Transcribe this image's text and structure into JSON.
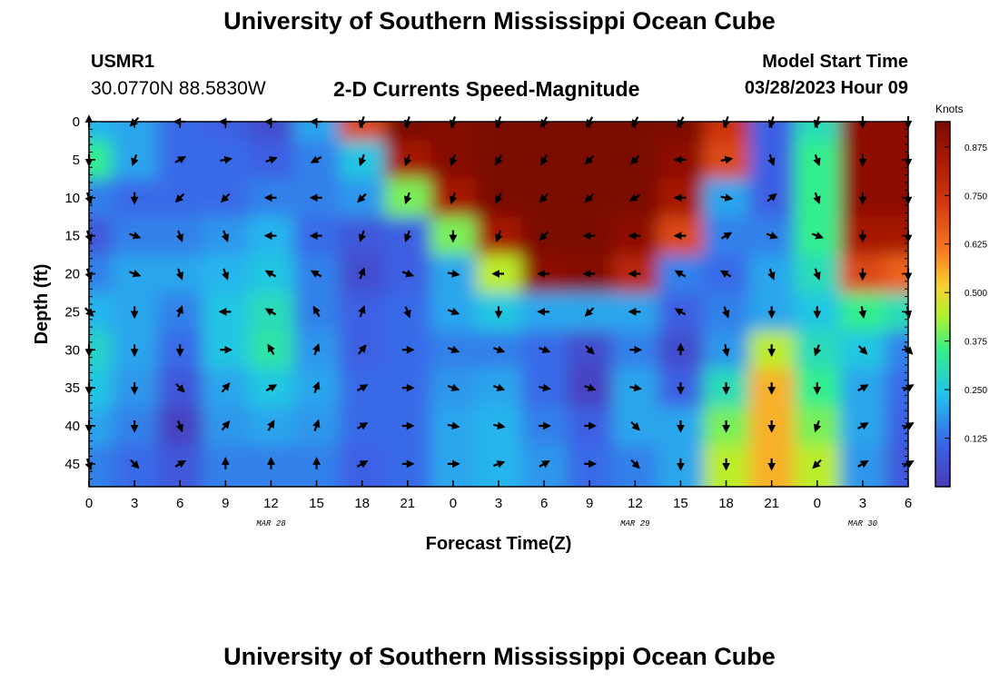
{
  "header": {
    "title": "University of Southern Mississippi Ocean Cube",
    "station": "USMR1",
    "coordinates": "30.0770N  88.5830W",
    "subtitle": "2-D Currents Speed-Magnitude",
    "model_start_label": "Model Start Time",
    "model_start_value": "03/28/2023 Hour 09",
    "bottom_title": "University of Southern Mississippi Ocean Cube"
  },
  "chart_data": {
    "type": "heatmap",
    "subtitle": "2-D Currents Speed-Magnitude",
    "xlabel": "Forecast Time(Z)",
    "ylabel": "Depth (ft)",
    "x_tick_labels": [
      "0",
      "3",
      "6",
      "9",
      "12",
      "15",
      "18",
      "21",
      "0",
      "3",
      "6",
      "9",
      "12",
      "15",
      "18",
      "21",
      "0",
      "3",
      "6"
    ],
    "date_labels": [
      {
        "label": "MAR 28",
        "tick_index": 4
      },
      {
        "label": "MAR 29",
        "tick_index": 12
      },
      {
        "label": "MAR 30",
        "tick_index": 17
      }
    ],
    "y_ticks": [
      0,
      5,
      10,
      15,
      20,
      25,
      30,
      35,
      40,
      45
    ],
    "ylim": [
      0,
      48
    ],
    "y_inverted": true,
    "colorbar": {
      "units": "Knots",
      "ticks": [
        "0.125",
        "0.250",
        "0.375",
        "0.500",
        "0.625",
        "0.750",
        "0.875"
      ],
      "range": [
        0,
        0.94
      ]
    },
    "depths": [
      0,
      5,
      10,
      15,
      20,
      25,
      30,
      35,
      40,
      45
    ],
    "speed_knots": [
      [
        0.22,
        0.2,
        0.12,
        0.1,
        0.05,
        0.2,
        0.7,
        0.95,
        0.92,
        0.95,
        0.97,
        0.98,
        0.96,
        0.95,
        0.75,
        0.1,
        0.3,
        0.9,
        0.9
      ],
      [
        0.35,
        0.2,
        0.12,
        0.12,
        0.1,
        0.15,
        0.25,
        0.85,
        0.92,
        0.97,
        0.98,
        0.98,
        0.97,
        0.9,
        0.7,
        0.1,
        0.35,
        0.9,
        0.9
      ],
      [
        0.15,
        0.12,
        0.12,
        0.12,
        0.15,
        0.15,
        0.18,
        0.4,
        0.85,
        0.95,
        0.98,
        0.98,
        0.95,
        0.85,
        0.2,
        0.1,
        0.35,
        0.9,
        0.9
      ],
      [
        0.08,
        0.15,
        0.15,
        0.18,
        0.22,
        0.12,
        0.08,
        0.1,
        0.4,
        0.85,
        0.95,
        0.95,
        0.9,
        0.7,
        0.15,
        0.15,
        0.35,
        0.85,
        0.85
      ],
      [
        0.15,
        0.2,
        0.2,
        0.22,
        0.25,
        0.15,
        0.05,
        0.1,
        0.2,
        0.45,
        0.9,
        0.92,
        0.8,
        0.15,
        0.12,
        0.2,
        0.3,
        0.7,
        0.65
      ],
      [
        0.22,
        0.2,
        0.15,
        0.25,
        0.3,
        0.15,
        0.1,
        0.12,
        0.2,
        0.25,
        0.2,
        0.2,
        0.2,
        0.1,
        0.15,
        0.2,
        0.25,
        0.35,
        0.3
      ],
      [
        0.28,
        0.2,
        0.12,
        0.25,
        0.32,
        0.18,
        0.1,
        0.12,
        0.15,
        0.15,
        0.12,
        0.05,
        0.15,
        0.05,
        0.18,
        0.45,
        0.3,
        0.25,
        0.15
      ],
      [
        0.25,
        0.18,
        0.08,
        0.2,
        0.25,
        0.2,
        0.12,
        0.12,
        0.18,
        0.2,
        0.12,
        0.02,
        0.2,
        0.1,
        0.3,
        0.55,
        0.35,
        0.2,
        0.12
      ],
      [
        0.2,
        0.15,
        0.02,
        0.18,
        0.2,
        0.18,
        0.12,
        0.12,
        0.2,
        0.22,
        0.15,
        0.1,
        0.2,
        0.2,
        0.4,
        0.55,
        0.4,
        0.2,
        0.1
      ],
      [
        0.15,
        0.12,
        0.08,
        0.15,
        0.15,
        0.15,
        0.1,
        0.12,
        0.2,
        0.22,
        0.18,
        0.12,
        0.15,
        0.2,
        0.45,
        0.55,
        0.45,
        0.18,
        0.08
      ]
    ],
    "direction_deg": [
      [
        0,
        225,
        270,
        270,
        270,
        270,
        200,
        200,
        200,
        200,
        210,
        210,
        210,
        210,
        200,
        200,
        200,
        180,
        180
      ],
      [
        180,
        200,
        60,
        80,
        70,
        240,
        200,
        200,
        200,
        210,
        210,
        225,
        225,
        270,
        80,
        160,
        160,
        180,
        180
      ],
      [
        160,
        180,
        225,
        225,
        270,
        270,
        225,
        200,
        200,
        210,
        225,
        225,
        240,
        270,
        100,
        50,
        160,
        180,
        180
      ],
      [
        160,
        110,
        160,
        160,
        270,
        270,
        200,
        200,
        180,
        200,
        225,
        270,
        270,
        270,
        60,
        110,
        110,
        180,
        180
      ],
      [
        160,
        110,
        160,
        160,
        300,
        300,
        20,
        110,
        100,
        270,
        270,
        270,
        270,
        300,
        300,
        160,
        160,
        180,
        180
      ],
      [
        135,
        180,
        20,
        270,
        300,
        330,
        20,
        160,
        110,
        180,
        270,
        225,
        270,
        300,
        160,
        180,
        180,
        170,
        170
      ],
      [
        180,
        180,
        180,
        90,
        330,
        20,
        40,
        90,
        110,
        110,
        110,
        135,
        90,
        0,
        170,
        180,
        200,
        135,
        135
      ],
      [
        180,
        180,
        135,
        40,
        60,
        20,
        60,
        90,
        110,
        110,
        100,
        110,
        100,
        180,
        180,
        180,
        180,
        60,
        60
      ],
      [
        180,
        180,
        160,
        40,
        30,
        20,
        60,
        90,
        100,
        100,
        90,
        90,
        135,
        180,
        180,
        180,
        200,
        60,
        60
      ],
      [
        160,
        135,
        60,
        0,
        0,
        0,
        60,
        90,
        90,
        70,
        60,
        90,
        135,
        180,
        180,
        180,
        225,
        60,
        60
      ]
    ]
  }
}
